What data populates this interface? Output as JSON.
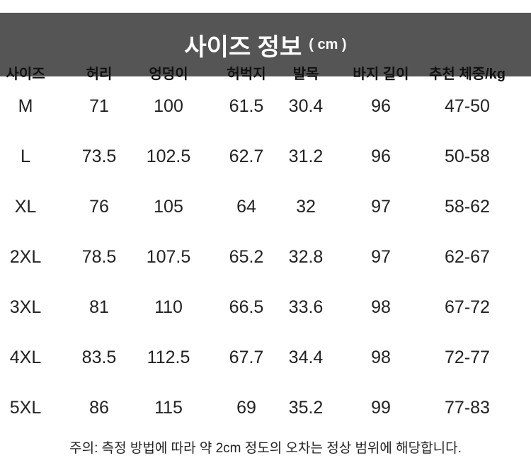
{
  "title": {
    "main": "사이즈 정보",
    "unit": "( cm )",
    "bar_color": "#555555"
  },
  "table": {
    "headers": [
      "사이즈",
      "허리",
      "엉덩이",
      "허벅지",
      "발목",
      "바지 길이",
      "추천 체중/kg"
    ],
    "rows": [
      [
        "M",
        "71",
        "100",
        "61.5",
        "30.4",
        "96",
        "47-50"
      ],
      [
        "L",
        "73.5",
        "102.5",
        "62.7",
        "31.2",
        "96",
        "50-58"
      ],
      [
        "XL",
        "76",
        "105",
        "64",
        "32",
        "97",
        "58-62"
      ],
      [
        "2XL",
        "78.5",
        "107.5",
        "65.2",
        "32.8",
        "97",
        "62-67"
      ],
      [
        "3XL",
        "81",
        "110",
        "66.5",
        "33.6",
        "98",
        "67-72"
      ],
      [
        "4XL",
        "83.5",
        "112.5",
        "67.7",
        "34.4",
        "98",
        "72-77"
      ],
      [
        "5XL",
        "86",
        "115",
        "69",
        "35.2",
        "99",
        "77-83"
      ]
    ]
  },
  "note": "주의: 측정 방법에 따라 약 2cm 정도의 오차는 정상 범위에 해당합니다."
}
